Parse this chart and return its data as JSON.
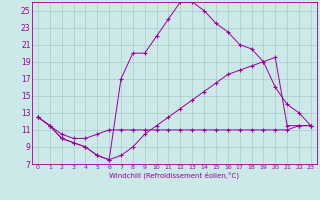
{
  "xlabel": "Windchill (Refroidissement éolien,°C)",
  "bg_color": "#cce8e8",
  "grid_color": "#aacccc",
  "line_color": "#990099",
  "xlim": [
    -0.5,
    23.5
  ],
  "ylim": [
    7,
    26
  ],
  "xticks": [
    0,
    1,
    2,
    3,
    4,
    5,
    6,
    7,
    8,
    9,
    10,
    11,
    12,
    13,
    14,
    15,
    16,
    17,
    18,
    19,
    20,
    21,
    22,
    23
  ],
  "yticks": [
    7,
    9,
    11,
    13,
    15,
    17,
    19,
    21,
    23,
    25
  ],
  "series1": [
    [
      0,
      12.5
    ],
    [
      1,
      11.5
    ],
    [
      2,
      10.5
    ],
    [
      3,
      10.0
    ],
    [
      4,
      10.0
    ],
    [
      5,
      10.5
    ],
    [
      6,
      11.0
    ],
    [
      7,
      11.0
    ],
    [
      8,
      11.0
    ],
    [
      9,
      11.0
    ],
    [
      10,
      11.0
    ],
    [
      11,
      11.0
    ],
    [
      12,
      11.0
    ],
    [
      13,
      11.0
    ],
    [
      14,
      11.0
    ],
    [
      15,
      11.0
    ],
    [
      16,
      11.0
    ],
    [
      17,
      11.0
    ],
    [
      18,
      11.0
    ],
    [
      19,
      11.0
    ],
    [
      20,
      11.0
    ],
    [
      21,
      11.0
    ],
    [
      22,
      11.5
    ],
    [
      23,
      11.5
    ]
  ],
  "series2": [
    [
      0,
      12.5
    ],
    [
      1,
      11.5
    ],
    [
      2,
      10.0
    ],
    [
      3,
      9.5
    ],
    [
      4,
      9.0
    ],
    [
      5,
      8.0
    ],
    [
      6,
      7.5
    ],
    [
      7,
      17.0
    ],
    [
      8,
      20.0
    ],
    [
      9,
      20.0
    ],
    [
      10,
      22.0
    ],
    [
      11,
      24.0
    ],
    [
      12,
      26.0
    ],
    [
      13,
      26.0
    ],
    [
      14,
      25.0
    ],
    [
      15,
      23.5
    ],
    [
      16,
      22.5
    ],
    [
      17,
      21.0
    ],
    [
      18,
      20.5
    ],
    [
      19,
      19.0
    ],
    [
      20,
      16.0
    ],
    [
      21,
      14.0
    ],
    [
      22,
      13.0
    ],
    [
      23,
      11.5
    ]
  ],
  "series3": [
    [
      0,
      12.5
    ],
    [
      1,
      11.5
    ],
    [
      2,
      10.0
    ],
    [
      3,
      9.5
    ],
    [
      4,
      9.0
    ],
    [
      5,
      8.0
    ],
    [
      6,
      7.5
    ],
    [
      7,
      8.0
    ],
    [
      8,
      9.0
    ],
    [
      9,
      10.5
    ],
    [
      10,
      11.5
    ],
    [
      11,
      12.5
    ],
    [
      12,
      13.5
    ],
    [
      13,
      14.5
    ],
    [
      14,
      15.5
    ],
    [
      15,
      16.5
    ],
    [
      16,
      17.5
    ],
    [
      17,
      18.0
    ],
    [
      18,
      18.5
    ],
    [
      19,
      19.0
    ],
    [
      20,
      19.5
    ],
    [
      21,
      11.5
    ],
    [
      22,
      11.5
    ],
    [
      23,
      11.5
    ]
  ]
}
